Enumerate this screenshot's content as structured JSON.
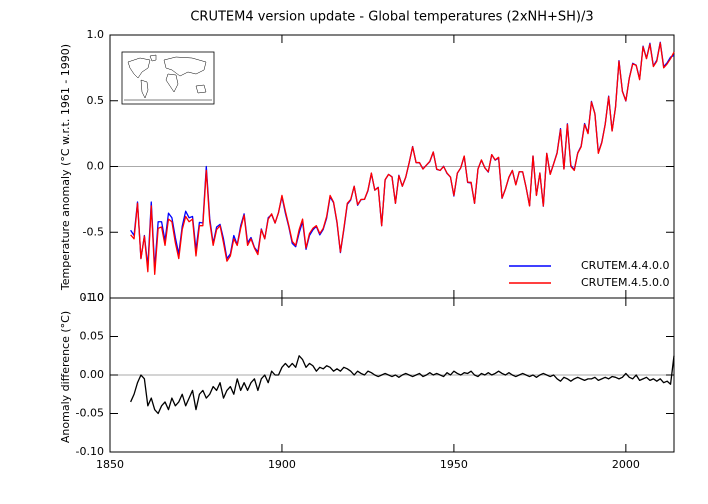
{
  "chart_data": [
    {
      "type": "line",
      "title": "CRUTEM4 version update - Global temperatures (2xNH+SH)/3",
      "y_label": "Temperature anomaly (°C w.r.t. 1961 - 1990)",
      "xlim": [
        1850,
        2014
      ],
      "ylim": [
        -1,
        1
      ],
      "yticks": [
        {
          "value": 1,
          "label": "1.0"
        },
        {
          "value": 0.5,
          "label": "0.5"
        },
        {
          "value": 0,
          "label": "0.0"
        },
        {
          "value": -0.5,
          "label": "-0.5"
        },
        {
          "value": -1,
          "label": "-1.0"
        }
      ],
      "legend": "lower right",
      "x": [
        1856,
        1857,
        1858,
        1859,
        1860,
        1861,
        1862,
        1863,
        1864,
        1865,
        1866,
        1867,
        1868,
        1869,
        1870,
        1871,
        1872,
        1873,
        1874,
        1875,
        1876,
        1877,
        1878,
        1879,
        1880,
        1881,
        1882,
        1883,
        1884,
        1885,
        1886,
        1887,
        1888,
        1889,
        1890,
        1891,
        1892,
        1893,
        1894,
        1895,
        1896,
        1897,
        1898,
        1899,
        1900,
        1901,
        1902,
        1903,
        1904,
        1905,
        1906,
        1907,
        1908,
        1909,
        1910,
        1911,
        1912,
        1913,
        1914,
        1915,
        1916,
        1917,
        1918,
        1919,
        1920,
        1921,
        1922,
        1923,
        1924,
        1925,
        1926,
        1927,
        1928,
        1929,
        1930,
        1931,
        1932,
        1933,
        1934,
        1935,
        1936,
        1937,
        1938,
        1939,
        1940,
        1941,
        1942,
        1943,
        1944,
        1945,
        1946,
        1947,
        1948,
        1949,
        1950,
        1951,
        1952,
        1953,
        1954,
        1955,
        1956,
        1957,
        1958,
        1959,
        1960,
        1961,
        1962,
        1963,
        1964,
        1965,
        1966,
        1967,
        1968,
        1969,
        1970,
        1971,
        1972,
        1973,
        1974,
        1975,
        1976,
        1977,
        1978,
        1979,
        1980,
        1981,
        1982,
        1983,
        1984,
        1985,
        1986,
        1987,
        1988,
        1989,
        1990,
        1991,
        1992,
        1993,
        1994,
        1995,
        1996,
        1997,
        1998,
        1999,
        2000,
        2001,
        2002,
        2003,
        2004,
        2005,
        2006,
        2007,
        2008,
        2009,
        2010,
        2011,
        2012,
        2013,
        2014
      ],
      "series": [
        {
          "name": "CRUTEM.4.4.0.0",
          "color": "#0000ff",
          "values": [
            -0.485,
            -0.525,
            -0.27,
            -0.7,
            -0.525,
            -0.76,
            -0.27,
            -0.775,
            -0.42,
            -0.42,
            -0.565,
            -0.355,
            -0.39,
            -0.54,
            -0.665,
            -0.455,
            -0.34,
            -0.39,
            -0.38,
            -0.635,
            -0.425,
            -0.43,
            0.0,
            -0.395,
            -0.585,
            -0.46,
            -0.44,
            -0.55,
            -0.7,
            -0.665,
            -0.525,
            -0.595,
            -0.45,
            -0.36,
            -0.58,
            -0.54,
            -0.615,
            -0.65,
            -0.475,
            -0.55,
            -0.39,
            -0.365,
            -0.43,
            -0.35,
            -0.23,
            -0.355,
            -0.46,
            -0.585,
            -0.61,
            -0.505,
            -0.42,
            -0.63,
            -0.525,
            -0.482,
            -0.455,
            -0.52,
            -0.478,
            -0.392,
            -0.23,
            -0.275,
            -0.428,
            -0.655,
            -0.48,
            -0.288,
            -0.255,
            -0.15,
            -0.295,
            -0.252,
            -0.25,
            -0.185,
            -0.053,
            -0.18,
            -0.158,
            -0.45,
            -0.102,
            -0.06,
            -0.078,
            -0.28,
            -0.067,
            -0.15,
            -0.082,
            0.03,
            0.152,
            0.03,
            0.028,
            -0.018,
            0.01,
            0.037,
            0.11,
            -0.022,
            -0.03,
            0.002,
            -0.053,
            -0.08,
            -0.225,
            -0.052,
            -0.01,
            0.077,
            -0.122,
            -0.125,
            -0.28,
            -0.018,
            0.048,
            -0.01,
            -0.043,
            0.09,
            0.048,
            0.065,
            -0.242,
            -0.17,
            -0.083,
            -0.03,
            -0.138,
            -0.04,
            -0.042,
            -0.16,
            -0.298,
            0.08,
            -0.217,
            -0.05,
            -0.302,
            0.1,
            -0.058,
            0.02,
            0.105,
            0.288,
            -0.017,
            0.325,
            0.008,
            -0.025,
            0.103,
            0.155,
            0.327,
            0.255,
            0.495,
            0.403,
            0.107,
            0.185,
            0.323,
            0.535,
            0.272,
            0.453,
            0.805,
            0.573,
            0.498,
            0.673,
            0.785,
            0.77,
            0.667,
            0.915,
            0.823,
            0.937,
            0.765,
            0.808,
            0.945,
            0.76,
            0.788,
            0.832,
            0.845
          ]
        },
        {
          "name": "CRUTEM.4.5.0.0",
          "color": "#ff0000",
          "values": [
            -0.52,
            -0.55,
            -0.28,
            -0.7,
            -0.53,
            -0.8,
            -0.3,
            -0.82,
            -0.47,
            -0.46,
            -0.6,
            -0.4,
            -0.42,
            -0.58,
            -0.7,
            -0.48,
            -0.38,
            -0.42,
            -0.4,
            -0.68,
            -0.45,
            -0.45,
            -0.03,
            -0.42,
            -0.6,
            -0.48,
            -0.45,
            -0.58,
            -0.72,
            -0.68,
            -0.55,
            -0.6,
            -0.47,
            -0.37,
            -0.6,
            -0.55,
            -0.62,
            -0.67,
            -0.48,
            -0.55,
            -0.4,
            -0.36,
            -0.43,
            -0.35,
            -0.22,
            -0.34,
            -0.45,
            -0.57,
            -0.6,
            -0.48,
            -0.4,
            -0.62,
            -0.51,
            -0.47,
            -0.45,
            -0.51,
            -0.47,
            -0.38,
            -0.22,
            -0.27,
            -0.42,
            -0.65,
            -0.47,
            -0.28,
            -0.25,
            -0.15,
            -0.29,
            -0.25,
            -0.25,
            -0.18,
            -0.05,
            -0.18,
            -0.16,
            -0.45,
            -0.1,
            -0.06,
            -0.08,
            -0.28,
            -0.07,
            -0.15,
            -0.08,
            0.03,
            0.15,
            0.03,
            0.03,
            -0.02,
            0.01,
            0.04,
            0.11,
            -0.02,
            -0.03,
            0.0,
            -0.05,
            -0.08,
            -0.22,
            -0.05,
            -0.01,
            0.08,
            -0.12,
            -0.12,
            -0.28,
            -0.02,
            0.05,
            -0.01,
            -0.04,
            0.09,
            0.05,
            0.07,
            -0.24,
            -0.17,
            -0.08,
            -0.03,
            -0.14,
            -0.04,
            -0.04,
            -0.16,
            -0.3,
            0.08,
            -0.22,
            -0.05,
            -0.3,
            0.1,
            -0.06,
            0.02,
            0.1,
            0.28,
            -0.02,
            0.32,
            0.0,
            -0.03,
            0.1,
            0.15,
            0.32,
            0.25,
            0.49,
            0.4,
            0.1,
            0.18,
            0.32,
            0.53,
            0.27,
            0.45,
            0.8,
            0.57,
            0.5,
            0.67,
            0.78,
            0.77,
            0.66,
            0.91,
            0.82,
            0.93,
            0.76,
            0.8,
            0.94,
            0.75,
            0.78,
            0.82,
            0.87
          ]
        }
      ]
    },
    {
      "type": "line",
      "y_label": "Anomaly difference (°C)",
      "xlim": [
        1850,
        2014
      ],
      "xticks": [
        1850,
        1900,
        1950,
        2000
      ],
      "ylim": [
        -0.1,
        0.1
      ],
      "yticks": [
        {
          "value": 0.1,
          "label": "0.10"
        },
        {
          "value": 0.05,
          "label": "0.05"
        },
        {
          "value": 0,
          "label": "0.00"
        },
        {
          "value": -0.05,
          "label": "-0.05"
        },
        {
          "value": -0.1,
          "label": "-0.10"
        }
      ],
      "x": [
        1856,
        1857,
        1858,
        1859,
        1860,
        1861,
        1862,
        1863,
        1864,
        1865,
        1866,
        1867,
        1868,
        1869,
        1870,
        1871,
        1872,
        1873,
        1874,
        1875,
        1876,
        1877,
        1878,
        1879,
        1880,
        1881,
        1882,
        1883,
        1884,
        1885,
        1886,
        1887,
        1888,
        1889,
        1890,
        1891,
        1892,
        1893,
        1894,
        1895,
        1896,
        1897,
        1898,
        1899,
        1900,
        1901,
        1902,
        1903,
        1904,
        1905,
        1906,
        1907,
        1908,
        1909,
        1910,
        1911,
        1912,
        1913,
        1914,
        1915,
        1916,
        1917,
        1918,
        1919,
        1920,
        1921,
        1922,
        1923,
        1924,
        1925,
        1926,
        1927,
        1928,
        1929,
        1930,
        1931,
        1932,
        1933,
        1934,
        1935,
        1936,
        1937,
        1938,
        1939,
        1940,
        1941,
        1942,
        1943,
        1944,
        1945,
        1946,
        1947,
        1948,
        1949,
        1950,
        1951,
        1952,
        1953,
        1954,
        1955,
        1956,
        1957,
        1958,
        1959,
        1960,
        1961,
        1962,
        1963,
        1964,
        1965,
        1966,
        1967,
        1968,
        1969,
        1970,
        1971,
        1972,
        1973,
        1974,
        1975,
        1976,
        1977,
        1978,
        1979,
        1980,
        1981,
        1982,
        1983,
        1984,
        1985,
        1986,
        1987,
        1988,
        1989,
        1990,
        1991,
        1992,
        1993,
        1994,
        1995,
        1996,
        1997,
        1998,
        1999,
        2000,
        2001,
        2002,
        2003,
        2004,
        2005,
        2006,
        2007,
        2008,
        2009,
        2010,
        2011,
        2012,
        2013,
        2014
      ],
      "color": "#000000",
      "values": [
        -0.035,
        -0.025,
        -0.01,
        0.0,
        -0.005,
        -0.04,
        -0.03,
        -0.045,
        -0.05,
        -0.04,
        -0.035,
        -0.045,
        -0.03,
        -0.04,
        -0.035,
        -0.025,
        -0.04,
        -0.03,
        -0.02,
        -0.045,
        -0.025,
        -0.02,
        -0.03,
        -0.025,
        -0.015,
        -0.02,
        -0.01,
        -0.03,
        -0.02,
        -0.015,
        -0.025,
        -0.005,
        -0.02,
        -0.01,
        -0.02,
        -0.01,
        -0.005,
        -0.02,
        -0.005,
        0.0,
        -0.01,
        0.005,
        0.0,
        0.0,
        0.01,
        0.015,
        0.01,
        0.015,
        0.01,
        0.025,
        0.02,
        0.01,
        0.015,
        0.012,
        0.005,
        0.01,
        0.008,
        0.012,
        0.01,
        0.005,
        0.008,
        0.005,
        0.01,
        0.008,
        0.005,
        0.0,
        0.005,
        0.002,
        0.0,
        0.005,
        0.003,
        0.0,
        -0.002,
        0.0,
        0.002,
        0.0,
        -0.002,
        0.0,
        -0.003,
        0.0,
        0.002,
        0.0,
        -0.002,
        0.0,
        0.002,
        -0.002,
        0.0,
        0.003,
        0.0,
        0.002,
        0.0,
        -0.002,
        0.003,
        0.0,
        0.005,
        0.002,
        0.0,
        0.003,
        0.002,
        0.005,
        0.0,
        -0.002,
        0.002,
        0.0,
        0.003,
        0.0,
        0.002,
        0.005,
        0.002,
        0.0,
        0.003,
        0.0,
        -0.002,
        0.0,
        0.002,
        0.0,
        -0.002,
        0.0,
        -0.003,
        0.0,
        0.002,
        0.0,
        -0.002,
        0.0,
        -0.005,
        -0.008,
        -0.003,
        -0.005,
        -0.008,
        -0.005,
        -0.003,
        -0.005,
        -0.007,
        -0.005,
        -0.005,
        -0.003,
        -0.007,
        -0.005,
        -0.003,
        -0.005,
        -0.002,
        -0.003,
        -0.005,
        -0.003,
        0.002,
        -0.003,
        -0.005,
        0.0,
        -0.007,
        -0.005,
        -0.003,
        -0.007,
        -0.005,
        -0.008,
        -0.005,
        -0.01,
        -0.008,
        -0.012,
        0.025
      ]
    }
  ]
}
